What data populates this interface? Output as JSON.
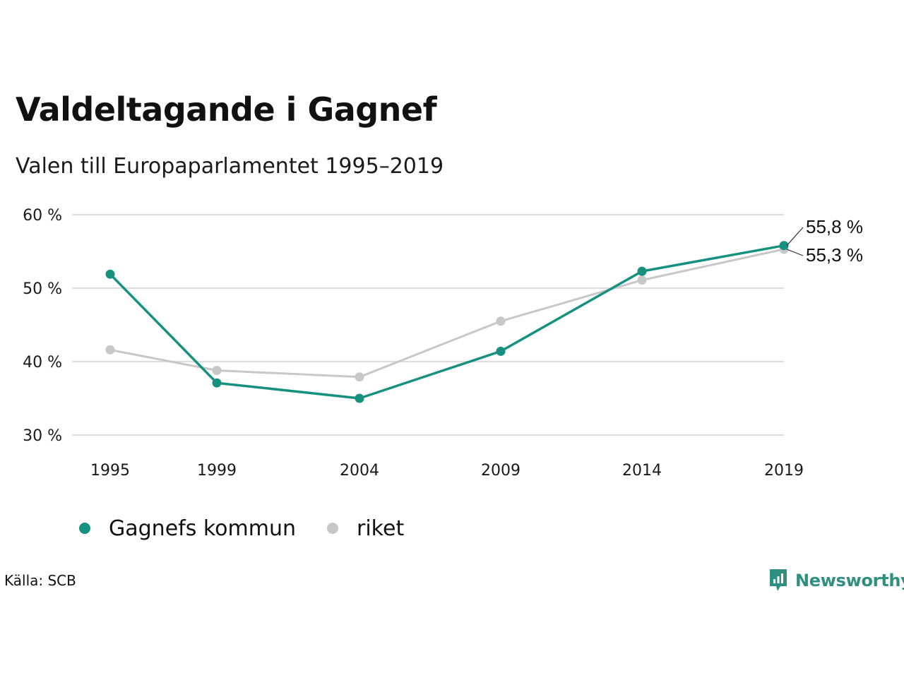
{
  "header": {
    "title": "Valdeltagande i Gagnef",
    "subtitle": "Valen till Europaparlamentet 1995–2019"
  },
  "footer": {
    "source": "Källa: SCB",
    "brand": "Newsworthy"
  },
  "colors": {
    "gagnef": "#17917f",
    "riket": "#c8c8c8",
    "grid": "#dddddd",
    "brand": "#2f8f80"
  },
  "chart_data": {
    "type": "line",
    "title": "Valdeltagande i Gagnef",
    "subtitle": "Valen till Europaparlamentet 1995–2019",
    "categories": [
      "1995",
      "1999",
      "2004",
      "2009",
      "2014",
      "2019"
    ],
    "x": [
      1995,
      1999,
      2004,
      2009,
      2014,
      2019
    ],
    "ylim": [
      30,
      60
    ],
    "yticks": [
      30,
      40,
      50,
      60
    ],
    "ytick_labels": [
      "30 %",
      "40 %",
      "50 %",
      "60 %"
    ],
    "grid": true,
    "legend": "bottom-left",
    "series": [
      {
        "name": "Gagnefs kommun",
        "color": "#17917f",
        "values": [
          51.9,
          37.1,
          35.0,
          41.4,
          52.3,
          55.8
        ],
        "end_label": "55,8 %"
      },
      {
        "name": "riket",
        "color": "#c8c8c8",
        "values": [
          41.6,
          38.8,
          37.9,
          45.5,
          51.1,
          55.3
        ],
        "end_label": "55,3 %"
      }
    ]
  }
}
